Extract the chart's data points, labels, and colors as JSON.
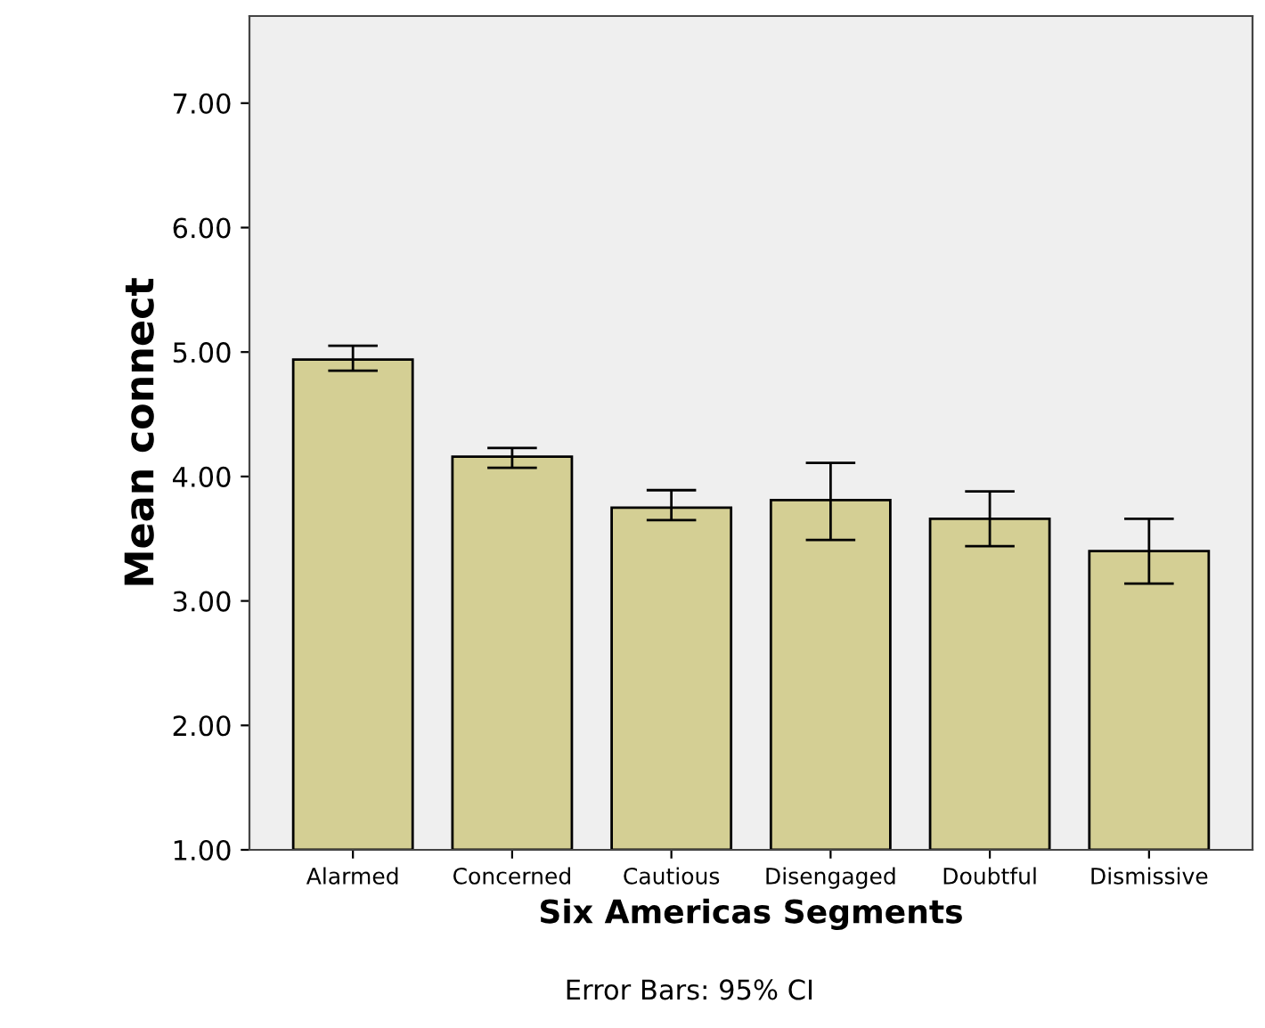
{
  "chart_data": {
    "type": "bar",
    "xlabel": "Six Americas Segments",
    "ylabel": "Mean connect",
    "categories": [
      "Alarmed",
      "Concerned",
      "Cautious",
      "Disengaged",
      "Doubtful",
      "Dismissive"
    ],
    "values": [
      4.94,
      4.16,
      3.75,
      3.81,
      3.66,
      3.4
    ],
    "errors": [
      [
        4.85,
        5.05
      ],
      [
        4.07,
        4.23
      ],
      [
        3.65,
        3.89
      ],
      [
        3.49,
        4.11
      ],
      [
        3.44,
        3.88
      ],
      [
        3.14,
        3.66
      ]
    ],
    "color": "#d4cf94",
    "ylim": [
      1,
      7.7
    ],
    "yticks": [
      {
        "value": 1,
        "label": "1.00"
      },
      {
        "value": 2,
        "label": "2.00"
      },
      {
        "value": 3,
        "label": "3.00"
      },
      {
        "value": 4,
        "label": "4.00"
      },
      {
        "value": 5,
        "label": "5.00"
      },
      {
        "value": 6,
        "label": "6.00"
      },
      {
        "value": 7,
        "label": "7.00"
      }
    ],
    "grid": false,
    "annotations": [
      "Error Bars: 95% CI"
    ]
  }
}
